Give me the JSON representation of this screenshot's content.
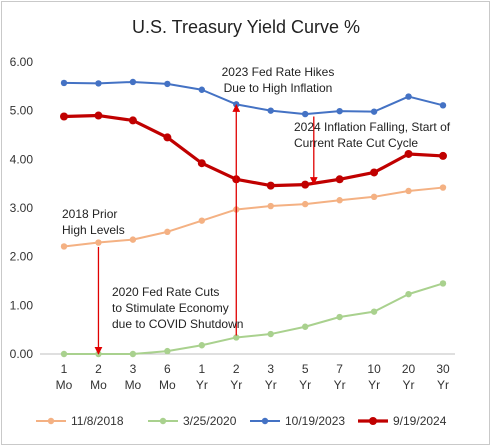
{
  "chart_data": {
    "type": "line",
    "title": "U.S. Treasury Yield Curve %",
    "xlabel": "",
    "ylabel": "",
    "ylim": [
      0,
      6
    ],
    "y_ticks": [
      "0.00",
      "1.00",
      "2.00",
      "3.00",
      "4.00",
      "5.00",
      "6.00"
    ],
    "categories": [
      [
        "1",
        "Mo"
      ],
      [
        "2",
        "Mo"
      ],
      [
        "3",
        "Mo"
      ],
      [
        "6",
        "Mo"
      ],
      [
        "1",
        "Yr"
      ],
      [
        "2",
        "Yr"
      ],
      [
        "3",
        "Yr"
      ],
      [
        "5",
        "Yr"
      ],
      [
        "7",
        "Yr"
      ],
      [
        "10",
        "Yr"
      ],
      [
        "20",
        "Yr"
      ],
      [
        "30",
        "Yr"
      ]
    ],
    "grid": false,
    "legend_position": "bottom",
    "series": [
      {
        "name": "11/8/2018",
        "color": "#f4b183",
        "width": "thin",
        "values": [
          2.21,
          2.29,
          2.35,
          2.51,
          2.74,
          2.97,
          3.04,
          3.08,
          3.16,
          3.23,
          3.35,
          3.42
        ]
      },
      {
        "name": "3/25/2020",
        "color": "#a9d18e",
        "width": "thin",
        "values": [
          0.0,
          0.0,
          0.0,
          0.06,
          0.18,
          0.34,
          0.41,
          0.56,
          0.76,
          0.87,
          1.23,
          1.45
        ]
      },
      {
        "name": "10/19/2023",
        "color": "#4472c4",
        "width": "thin",
        "values": [
          5.57,
          5.56,
          5.59,
          5.55,
          5.43,
          5.13,
          5.0,
          4.93,
          4.99,
          4.98,
          5.29,
          5.11
        ]
      },
      {
        "name": "9/19/2024",
        "color": "#c00000",
        "width": "thick",
        "values": [
          4.88,
          4.9,
          4.8,
          4.45,
          3.92,
          3.59,
          3.46,
          3.48,
          3.59,
          3.73,
          4.11,
          4.07
        ]
      }
    ],
    "annotations": [
      {
        "lines": [
          "2023 Fed Rate Hikes",
          "Due to High Inflation"
        ]
      },
      {
        "lines": [
          "2024 Inflation Falling, Start of",
          "Current Rate Cut Cycle"
        ]
      },
      {
        "lines": [
          "2018 Prior",
          "High Levels"
        ]
      },
      {
        "lines": [
          "2020 Fed Rate Cuts",
          "to Stimulate Economy",
          "due to COVID Shutdown"
        ]
      }
    ],
    "arrows": [
      {
        "x_index": 1,
        "from": 2.2,
        "to": 0.0,
        "color": "#e00000"
      },
      {
        "x_index": 5,
        "from": 0.38,
        "to": 5.12,
        "color": "#e00000"
      },
      {
        "x_index": 7.25,
        "from": 4.88,
        "to": 3.49,
        "color": "#e00000"
      }
    ]
  }
}
